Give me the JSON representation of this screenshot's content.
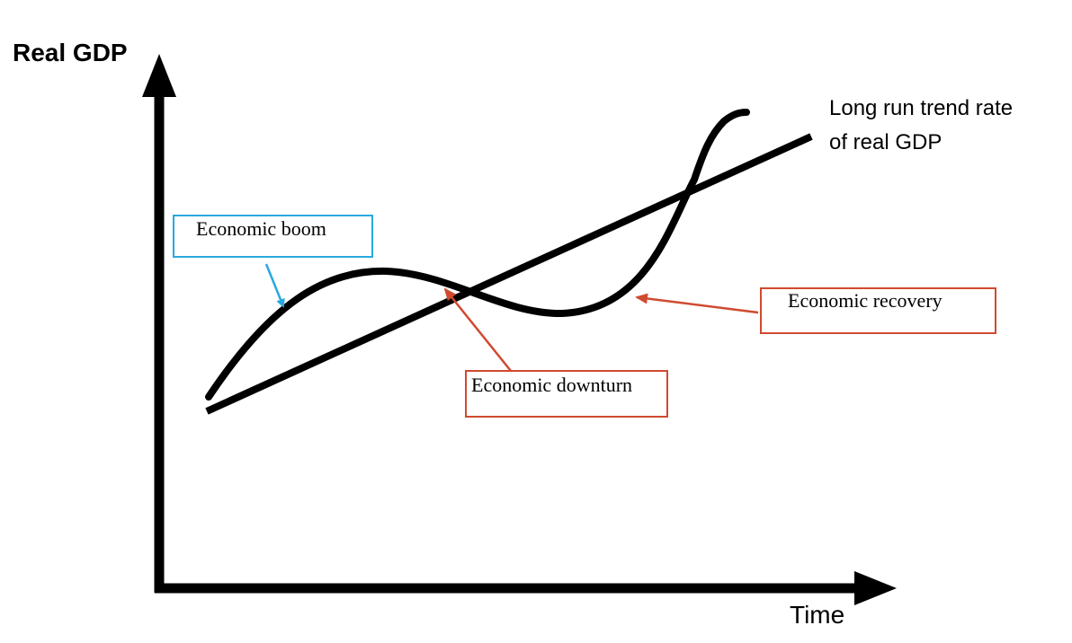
{
  "axes": {
    "y_label": "Real GDP",
    "x_label": "Time"
  },
  "trend_label": {
    "line1": "Long run trend rate",
    "line2": "of real GDP"
  },
  "callouts": {
    "boom": {
      "label": "Economic boom",
      "color": "#29a8e0"
    },
    "downturn": {
      "label": "Economic downturn",
      "color": "#d04a2f"
    },
    "recovery": {
      "label": "Economic recovery",
      "color": "#d04a2f"
    }
  },
  "colors": {
    "axis": "#000000",
    "curve": "#000000"
  }
}
